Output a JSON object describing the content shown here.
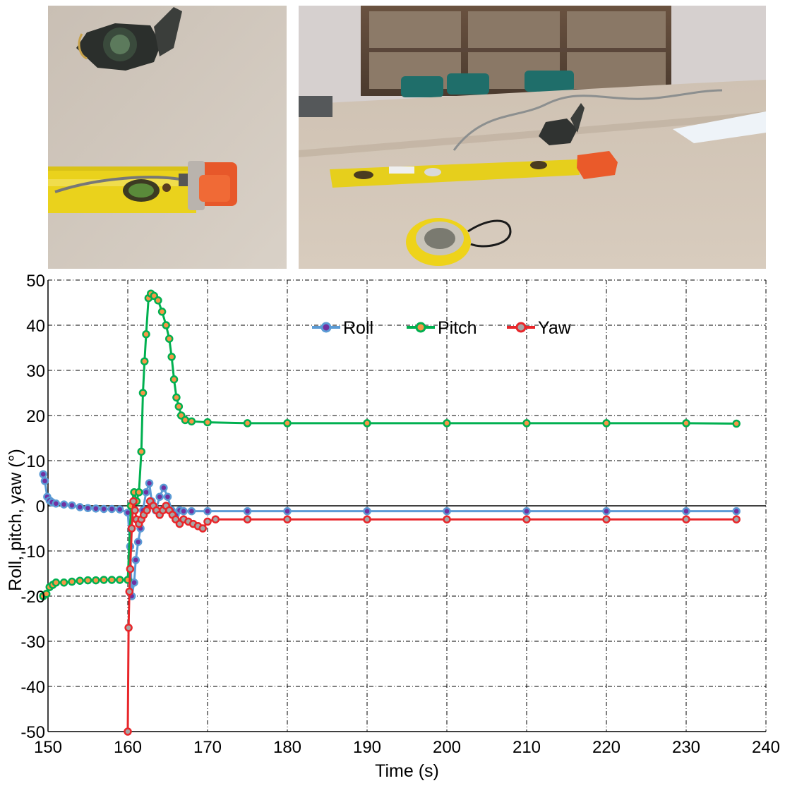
{
  "photos": [
    {
      "description": "compass-and-level-top-view"
    },
    {
      "description": "table-with-level-sensor-and-compasses"
    }
  ],
  "chart_data": {
    "type": "line",
    "xlabel": "Time (s)",
    "ylabel": "Roll, pitch, yaw (°)",
    "xlim": [
      150,
      240
    ],
    "ylim": [
      -50,
      50
    ],
    "xticks": [
      150,
      160,
      170,
      180,
      190,
      200,
      210,
      220,
      230,
      240
    ],
    "yticks": [
      -50,
      -40,
      -30,
      -20,
      -10,
      0,
      10,
      20,
      30,
      40,
      50
    ],
    "grid": true,
    "legend_position": "top-right",
    "series": [
      {
        "name": "Roll",
        "line_color": "#5b9bd5",
        "marker_color": "#7030a0",
        "x": [
          149.4,
          149.6,
          149.9,
          150.2,
          150.5,
          151,
          152,
          153,
          154,
          155,
          156,
          157,
          158,
          159,
          160,
          160.3,
          160.5,
          160.8,
          161.0,
          161.3,
          161.6,
          161.9,
          162.3,
          162.7,
          163.0,
          163.5,
          164.0,
          164.5,
          165.0,
          165.5,
          166.0,
          166.5,
          167.0,
          168,
          170,
          175,
          180,
          190,
          200,
          210,
          220,
          230,
          236.3
        ],
        "y": [
          7,
          5.5,
          2,
          1.2,
          0.8,
          0.5,
          0.3,
          0.1,
          -0.3,
          -0.5,
          -0.6,
          -0.7,
          -0.7,
          -0.8,
          -1.5,
          -9,
          -20,
          -17,
          -12,
          -8,
          -5,
          -1,
          3,
          5,
          1,
          -1,
          2,
          4,
          2,
          -1,
          -2,
          -1,
          -1.2,
          -1.2,
          -1.2,
          -1.2,
          -1.2,
          -1.2,
          -1.2,
          -1.2,
          -1.2,
          -1.2,
          -1.2
        ]
      },
      {
        "name": "Pitch",
        "line_color": "#00b050",
        "marker_color": "#f79646",
        "x": [
          149.4,
          149.8,
          150.2,
          150.6,
          151,
          152,
          153,
          154,
          155,
          156,
          157,
          158,
          159,
          160,
          160.4,
          160.8,
          161.1,
          161.4,
          161.7,
          161.9,
          162.1,
          162.3,
          162.6,
          162.9,
          163.3,
          163.8,
          164.3,
          164.8,
          165.2,
          165.5,
          165.8,
          166.1,
          166.4,
          166.7,
          167.2,
          168,
          170,
          175,
          180,
          190,
          200,
          210,
          220,
          230,
          236.3
        ],
        "y": [
          -20,
          -19.5,
          -18,
          -17.5,
          -17,
          -17,
          -16.8,
          -16.6,
          -16.5,
          -16.5,
          -16.4,
          -16.4,
          -16.4,
          -16.4,
          0,
          3,
          1,
          3,
          12,
          25,
          32,
          38,
          46,
          47,
          46.5,
          45.5,
          43,
          40,
          37,
          33,
          28,
          24,
          22,
          20,
          19,
          18.7,
          18.5,
          18.3,
          18.3,
          18.3,
          18.3,
          18.3,
          18.3,
          18.3,
          18.2
        ]
      },
      {
        "name": "Yaw",
        "line_color": "#e8262a",
        "marker_color": "#a6a6a6",
        "x": [
          160.0,
          160.1,
          160.2,
          160.3,
          160.5,
          160.7,
          160.9,
          161.1,
          161.4,
          161.7,
          162.0,
          162.4,
          162.8,
          163.2,
          163.6,
          164.0,
          164.4,
          164.8,
          165.2,
          165.6,
          166.0,
          166.5,
          167.0,
          167.6,
          168.2,
          168.8,
          169.4,
          170.0,
          171,
          175,
          180,
          190,
          200,
          210,
          220,
          230,
          236.3
        ],
        "y": [
          -50,
          -27,
          -19,
          -14,
          -5,
          1,
          -1,
          -3,
          -4,
          -3,
          -2,
          -1,
          1,
          0,
          -1,
          -2,
          -1,
          0,
          -1,
          -2,
          -3,
          -4,
          -3,
          -3.5,
          -4,
          -4.5,
          -5,
          -3.5,
          -3,
          -3,
          -3,
          -3,
          -3,
          -3,
          -3,
          -3,
          -3
        ]
      }
    ]
  }
}
